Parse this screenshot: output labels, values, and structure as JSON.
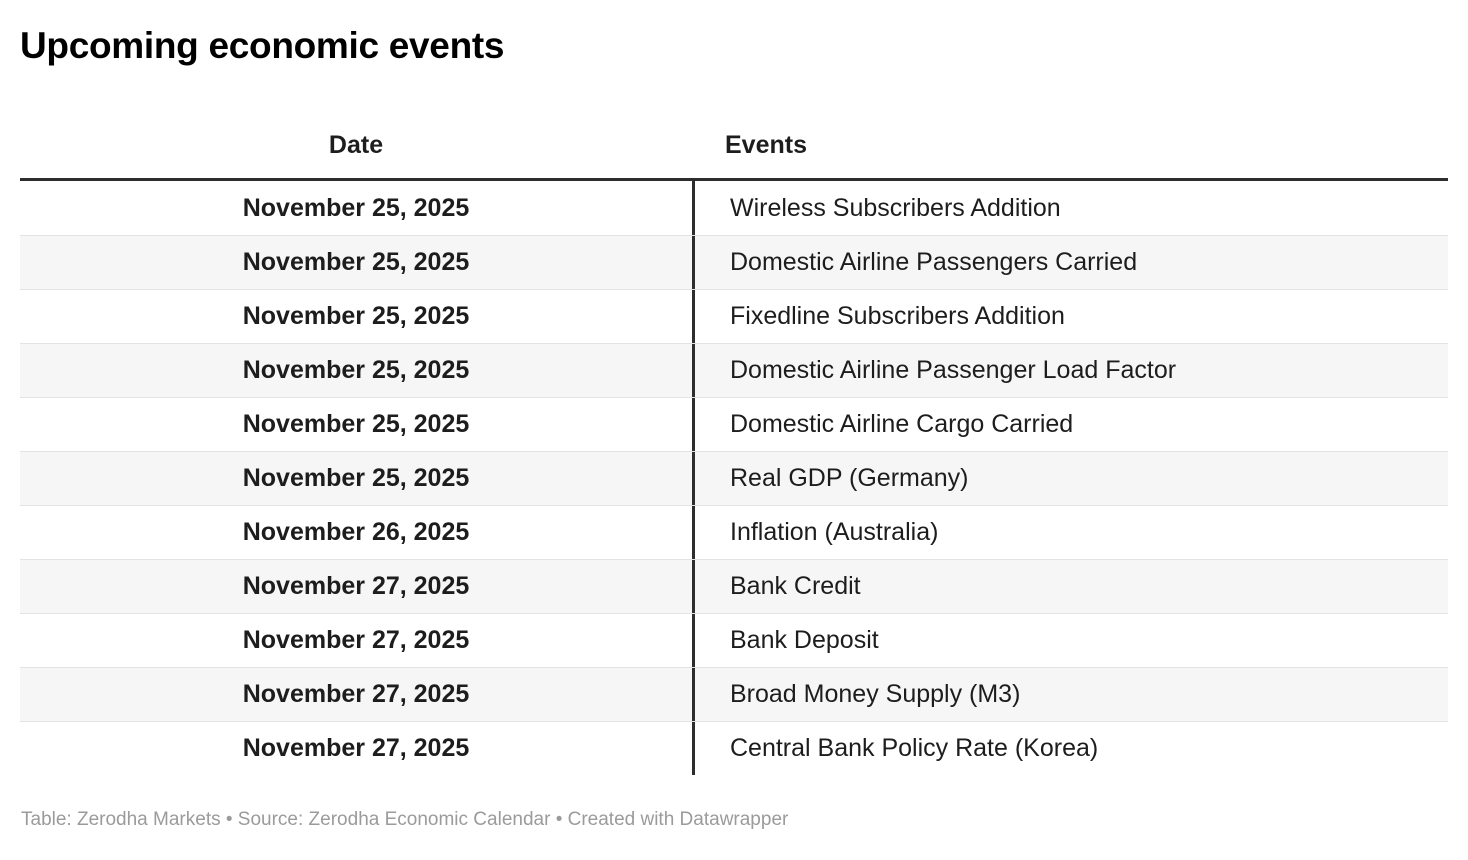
{
  "chart_data": {
    "type": "table",
    "title": "Upcoming economic events",
    "columns": [
      "Date",
      "Events"
    ],
    "rows": [
      [
        "November 25, 2025",
        "Wireless Subscribers Addition"
      ],
      [
        "November 25, 2025",
        "Domestic Airline Passengers Carried"
      ],
      [
        "November 25, 2025",
        "Fixedline Subscribers Addition"
      ],
      [
        "November 25, 2025",
        "Domestic Airline Passenger Load Factor"
      ],
      [
        "November 25, 2025",
        "Domestic Airline Cargo Carried"
      ],
      [
        "November 25, 2025",
        "Real GDP (Germany)"
      ],
      [
        "November 26, 2025",
        "Inflation (Australia)"
      ],
      [
        "November 27, 2025",
        "Bank Credit"
      ],
      [
        "November 27, 2025",
        "Bank Deposit"
      ],
      [
        "November 27, 2025",
        "Broad Money Supply (M3)"
      ],
      [
        "November 27, 2025",
        "Central Bank Policy Rate (Korea)"
      ]
    ],
    "footer": "Table: Zerodha Markets • Source: Zerodha Economic Calendar • Created with Datawrapper",
    "layout": {
      "date_align": "center",
      "events_align": "left",
      "striped": true,
      "header_rule": true,
      "column_divider": true
    }
  },
  "colors": {
    "header_rule": "#2d2d2d",
    "column_divider": "#2d2d2d",
    "stripe": "#f6f6f6",
    "row_border": "#e3e3e3",
    "text": "#1d1d1d",
    "footer_text": "#9b9b9b"
  }
}
